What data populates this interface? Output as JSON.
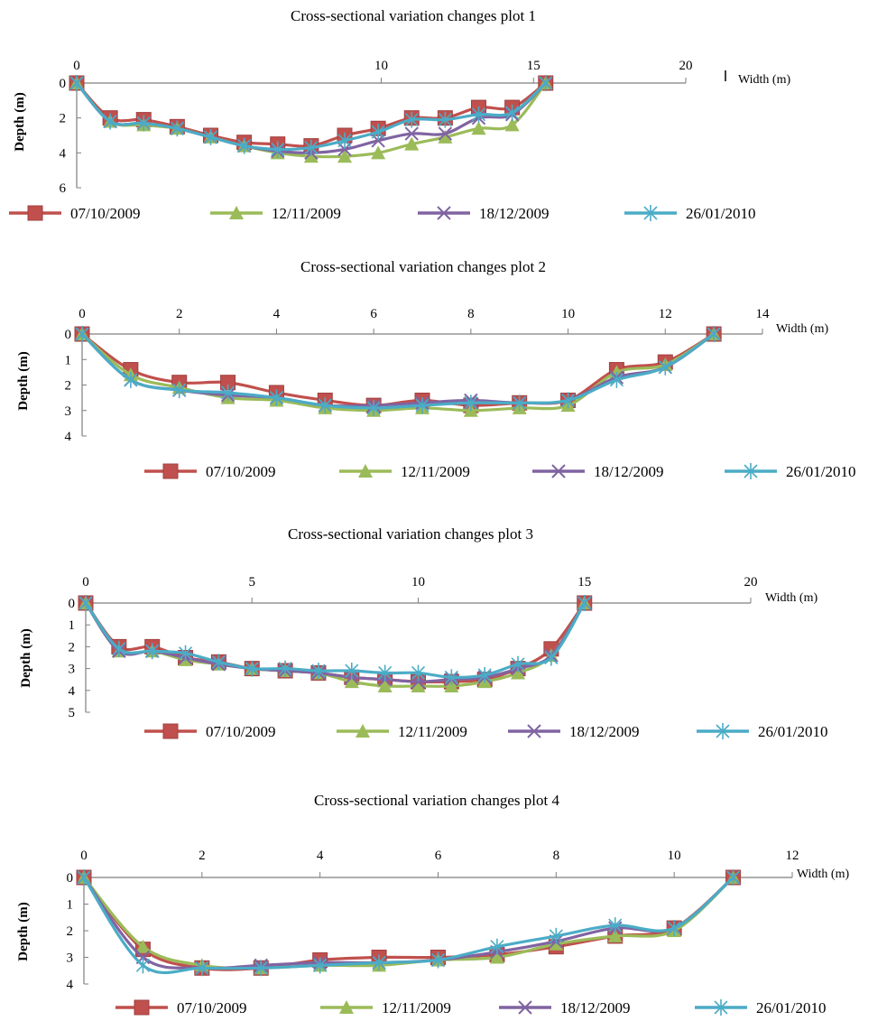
{
  "colors": {
    "series": [
      "#C0504D",
      "#9BBB59",
      "#8064A2",
      "#4BACC6"
    ]
  },
  "chart_data": [
    {
      "type": "line",
      "title": "Cross-sectional variation changes plot 1",
      "xlabel": "Width (m)",
      "ylabel": "Depth (m)",
      "xlim": [
        0,
        20
      ],
      "ylim": [
        0,
        6
      ],
      "xticks": [
        "0",
        "10",
        "15",
        "20"
      ],
      "yticks": [
        "0",
        "2",
        "4",
        "6"
      ],
      "legend": "bottom",
      "series": [
        {
          "name": "07/10/2009",
          "x": [
            0,
            1.1,
            2.2,
            3.3,
            4.4,
            5.5,
            6.6,
            7.7,
            8.8,
            9.9,
            11,
            12.1,
            13.2,
            14.3,
            15.4,
            16.5,
            17.6,
            18.7,
            19.8
          ],
          "y": [
            0,
            2,
            2.1,
            2.5,
            3.0,
            3.4,
            3.5,
            3.6,
            3.0,
            2.6,
            2.0,
            2.0,
            1.4,
            1.4,
            0,
            0,
            0,
            0,
            0
          ]
        },
        {
          "name": "12/11/2009",
          "x": [
            0,
            1.1,
            2.2,
            3.3,
            4.4,
            5.5,
            6.6,
            7.7,
            8.8,
            9.9,
            11,
            12.1,
            13.2,
            14.3,
            15.4,
            16.5,
            17.6,
            18.7,
            19.8
          ],
          "y": [
            0,
            2.2,
            2.4,
            2.6,
            3.1,
            3.6,
            4.0,
            4.2,
            4.2,
            4.0,
            3.5,
            3.1,
            2.6,
            2.4,
            0,
            0,
            0,
            0,
            0
          ]
        },
        {
          "name": "18/12/2009",
          "x": [
            0,
            1.1,
            2.2,
            3.3,
            4.4,
            5.5,
            6.6,
            7.7,
            8.8,
            9.9,
            11,
            12.1,
            13.2,
            14.3,
            15.4,
            16.5,
            17.6,
            18.7,
            19.8
          ],
          "y": [
            0,
            2.2,
            2.3,
            2.6,
            3.1,
            3.6,
            3.9,
            4.0,
            3.8,
            3.3,
            2.9,
            2.9,
            2.0,
            1.8,
            0,
            0,
            0,
            0,
            0
          ]
        },
        {
          "name": "26/01/2010",
          "x": [
            0,
            1.1,
            2.2,
            3.3,
            4.4,
            5.5,
            6.6,
            7.7,
            8.8,
            9.9,
            11,
            12.1,
            13.2,
            14.3,
            15.4,
            16.5,
            17.6,
            18.7,
            19.8
          ],
          "y": [
            0,
            2.2,
            2.3,
            2.6,
            3.1,
            3.6,
            3.8,
            3.7,
            3.3,
            2.8,
            2.1,
            2.1,
            1.8,
            1.7,
            0,
            0,
            0,
            0,
            0
          ]
        }
      ]
    },
    {
      "type": "line",
      "title": "Cross-sectional variation changes plot 2",
      "xlabel": "Width (m)",
      "ylabel": "Depth (m)",
      "xlim": [
        0,
        14
      ],
      "ylim": [
        0,
        4
      ],
      "xticks": [
        "0",
        "2",
        "4",
        "6",
        "8",
        "10",
        "12",
        "14"
      ],
      "yticks": [
        "0",
        "1",
        "2",
        "3",
        "4"
      ],
      "legend": "bottom",
      "series": [
        {
          "name": "07/10/2009",
          "x": [
            0,
            1,
            2,
            3,
            4,
            5,
            6,
            7,
            8,
            9,
            10,
            11,
            12,
            13
          ],
          "y": [
            0,
            1.4,
            1.9,
            1.9,
            2.3,
            2.6,
            2.8,
            2.6,
            2.8,
            2.7,
            2.6,
            1.4,
            1.1,
            0
          ]
        },
        {
          "name": "12/11/2009",
          "x": [
            0,
            1,
            2,
            3,
            4,
            5,
            6,
            7,
            8,
            9,
            10,
            11,
            12,
            13
          ],
          "y": [
            0,
            1.6,
            2.1,
            2.5,
            2.6,
            2.9,
            3.0,
            2.9,
            3.0,
            2.9,
            2.8,
            1.5,
            1.2,
            0
          ]
        },
        {
          "name": "18/12/2009",
          "x": [
            0,
            1,
            2,
            3,
            4,
            5,
            6,
            7,
            8,
            9,
            10,
            11,
            12,
            13
          ],
          "y": [
            0,
            1.8,
            2.2,
            2.4,
            2.5,
            2.8,
            2.8,
            2.7,
            2.6,
            2.7,
            2.6,
            1.7,
            1.3,
            0
          ]
        },
        {
          "name": "26/01/2010",
          "x": [
            0,
            1,
            2,
            3,
            4,
            5,
            6,
            7,
            8,
            9,
            10,
            11,
            12,
            13
          ],
          "y": [
            0,
            1.8,
            2.2,
            2.3,
            2.5,
            2.8,
            2.9,
            2.8,
            2.7,
            2.7,
            2.6,
            1.8,
            1.3,
            0
          ]
        }
      ]
    },
    {
      "type": "line",
      "title": "Cross-sectional variation changes plot 3",
      "xlabel": "Width (m)",
      "ylabel": "Depth (m)",
      "xlim": [
        0,
        20
      ],
      "ylim": [
        0,
        5
      ],
      "xticks": [
        "0",
        "5",
        "10",
        "15",
        "20"
      ],
      "yticks": [
        "0",
        "1",
        "2",
        "3",
        "4",
        "5"
      ],
      "legend": "bottom",
      "series": [
        {
          "name": "07/10/2009",
          "x": [
            0,
            1,
            2,
            3,
            4,
            5,
            6,
            7,
            8,
            9,
            10,
            11,
            12,
            13,
            14,
            15
          ],
          "y": [
            0,
            2.0,
            2.0,
            2.5,
            2.7,
            3.0,
            3.1,
            3.2,
            3.4,
            3.5,
            3.6,
            3.6,
            3.5,
            3.0,
            2.1,
            0
          ]
        },
        {
          "name": "12/11/2009",
          "x": [
            0,
            1,
            2,
            3,
            4,
            5,
            6,
            7,
            8,
            9,
            10,
            11,
            12,
            13,
            14,
            15
          ],
          "y": [
            0,
            2.2,
            2.2,
            2.6,
            2.8,
            3.0,
            3.1,
            3.2,
            3.6,
            3.8,
            3.8,
            3.8,
            3.6,
            3.2,
            2.4,
            0
          ]
        },
        {
          "name": "18/12/2009",
          "x": [
            0,
            1,
            2,
            3,
            4,
            5,
            6,
            7,
            8,
            9,
            10,
            11,
            12,
            13,
            14,
            15
          ],
          "y": [
            0,
            2.2,
            2.2,
            2.5,
            2.8,
            3.0,
            3.1,
            3.2,
            3.4,
            3.5,
            3.6,
            3.5,
            3.4,
            3.0,
            2.4,
            0
          ]
        },
        {
          "name": "26/01/2010",
          "x": [
            0,
            1,
            2,
            3,
            4,
            5,
            6,
            7,
            8,
            9,
            10,
            11,
            12,
            13,
            14,
            15
          ],
          "y": [
            0,
            2.1,
            2.2,
            2.3,
            2.7,
            3.0,
            3.0,
            3.1,
            3.1,
            3.2,
            3.2,
            3.4,
            3.3,
            2.8,
            2.5,
            0
          ]
        }
      ]
    },
    {
      "type": "line",
      "title": "Cross-sectional variation changes plot 4",
      "xlabel": "Width (m)",
      "ylabel": "Depth (m)",
      "xlim": [
        0,
        12
      ],
      "ylim": [
        0,
        4
      ],
      "xticks": [
        "0",
        "2",
        "4",
        "6",
        "8",
        "10",
        "12"
      ],
      "yticks": [
        "0",
        "1",
        "2",
        "3",
        "4"
      ],
      "legend": "bottom",
      "series": [
        {
          "name": "07/10/2009",
          "x": [
            0,
            1,
            2,
            3,
            4,
            5,
            6,
            7,
            8,
            9,
            10,
            11
          ],
          "y": [
            0,
            2.7,
            3.4,
            3.4,
            3.1,
            3.0,
            3.0,
            2.9,
            2.6,
            2.2,
            1.9,
            0
          ]
        },
        {
          "name": "12/11/2009",
          "x": [
            0,
            1,
            2,
            3,
            4,
            5,
            6,
            7,
            8,
            9,
            10,
            11
          ],
          "y": [
            0,
            2.6,
            3.3,
            3.4,
            3.3,
            3.3,
            3.1,
            3.0,
            2.5,
            2.2,
            2.0,
            0
          ]
        },
        {
          "name": "18/12/2009",
          "x": [
            0,
            1,
            2,
            3,
            4,
            5,
            6,
            7,
            8,
            9,
            10,
            11
          ],
          "y": [
            0,
            3.0,
            3.4,
            3.3,
            3.2,
            3.2,
            3.1,
            2.8,
            2.4,
            1.9,
            1.9,
            0
          ]
        },
        {
          "name": "26/01/2010",
          "x": [
            0,
            1,
            2,
            3,
            4,
            5,
            6,
            7,
            8,
            9,
            10,
            11
          ],
          "y": [
            0,
            3.3,
            3.4,
            3.4,
            3.3,
            3.2,
            3.1,
            2.6,
            2.2,
            1.8,
            1.9,
            0
          ]
        }
      ]
    }
  ]
}
